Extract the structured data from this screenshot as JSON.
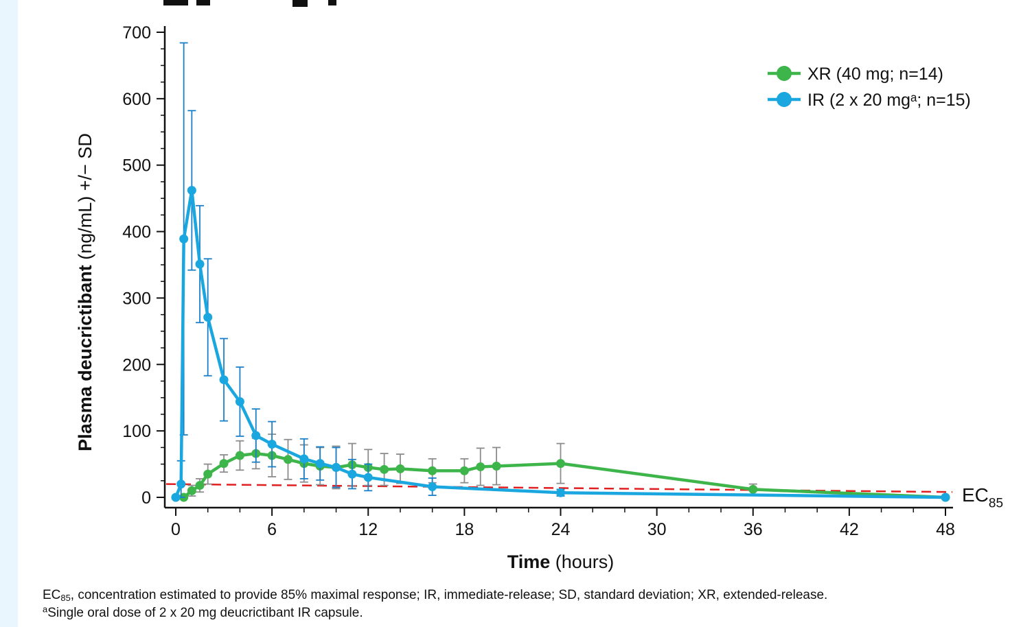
{
  "chart_data": {
    "type": "line",
    "xlabel_bold": "Time",
    "xlabel_rest": "(hours)",
    "ylabel_bold": "Plasma deucrictibant",
    "ylabel_rest": "(ng/mL) +/− SD",
    "xlim": [
      0,
      48
    ],
    "ylim": [
      0,
      700
    ],
    "x_ticks": [
      0,
      6,
      12,
      18,
      24,
      30,
      36,
      42,
      48
    ],
    "x_tick_labels": [
      "0",
      "6",
      "12",
      "18",
      "24",
      "30",
      "36",
      "42",
      "48"
    ],
    "y_ticks": [
      0,
      100,
      200,
      300,
      400,
      500,
      600,
      700
    ],
    "y_tick_labels": [
      "0",
      "100",
      "200",
      "300",
      "400",
      "500",
      "600",
      "700"
    ],
    "legend_position": "top-right",
    "series": [
      {
        "name": "XR (40 mg; n=14)",
        "color": "#3db54a",
        "error_color": "#8c8c8c",
        "points": [
          {
            "x": 0,
            "y": 0,
            "sd": 0
          },
          {
            "x": 0.5,
            "y": 0,
            "sd": 0
          },
          {
            "x": 1,
            "y": 10,
            "sd": 8
          },
          {
            "x": 1.5,
            "y": 18,
            "sd": 10
          },
          {
            "x": 2,
            "y": 35,
            "sd": 15
          },
          {
            "x": 3,
            "y": 51,
            "sd": 13
          },
          {
            "x": 4,
            "y": 63,
            "sd": 22
          },
          {
            "x": 5,
            "y": 66,
            "sd": 23
          },
          {
            "x": 6,
            "y": 63,
            "sd": 32
          },
          {
            "x": 7,
            "y": 57,
            "sd": 30
          },
          {
            "x": 8,
            "y": 51,
            "sd": 28
          },
          {
            "x": 9,
            "y": 47,
            "sd": 28
          },
          {
            "x": 10,
            "y": 45,
            "sd": 32
          },
          {
            "x": 11,
            "y": 49,
            "sd": 32
          },
          {
            "x": 12,
            "y": 45,
            "sd": 27
          },
          {
            "x": 13,
            "y": 42,
            "sd": 24
          },
          {
            "x": 14,
            "y": 43,
            "sd": 22
          },
          {
            "x": 16,
            "y": 40,
            "sd": 18
          },
          {
            "x": 18,
            "y": 40,
            "sd": 18
          },
          {
            "x": 19,
            "y": 46,
            "sd": 28
          },
          {
            "x": 20,
            "y": 47,
            "sd": 28
          },
          {
            "x": 24,
            "y": 51,
            "sd": 30
          },
          {
            "x": 36,
            "y": 12,
            "sd": 8
          },
          {
            "x": 48,
            "y": 0,
            "sd": 0
          }
        ]
      },
      {
        "name": "IR (2 x 20 mgᵃ; n=15)",
        "color": "#1aa7e0",
        "error_color": "#1a7fc9",
        "points": [
          {
            "x": 0,
            "y": 0,
            "sd": 0
          },
          {
            "x": 0.33,
            "y": 20,
            "sd": 35
          },
          {
            "x": 0.5,
            "y": 389,
            "sd": 295
          },
          {
            "x": 1,
            "y": 462,
            "sd": 120
          },
          {
            "x": 1.5,
            "y": 351,
            "sd": 88
          },
          {
            "x": 2,
            "y": 271,
            "sd": 88
          },
          {
            "x": 3,
            "y": 177,
            "sd": 62
          },
          {
            "x": 4,
            "y": 144,
            "sd": 52
          },
          {
            "x": 5,
            "y": 93,
            "sd": 40
          },
          {
            "x": 6,
            "y": 80,
            "sd": 34
          },
          {
            "x": 8,
            "y": 58,
            "sd": 30
          },
          {
            "x": 9,
            "y": 51,
            "sd": 25
          },
          {
            "x": 10,
            "y": 45,
            "sd": 30
          },
          {
            "x": 11,
            "y": 35,
            "sd": 22
          },
          {
            "x": 12,
            "y": 30,
            "sd": 20
          },
          {
            "x": 16,
            "y": 16,
            "sd": 13
          },
          {
            "x": 24,
            "y": 7,
            "sd": 5
          },
          {
            "x": 48,
            "y": 0,
            "sd": 0
          }
        ]
      }
    ],
    "reference_line": {
      "label_base": "EC",
      "label_sub": "85",
      "color": "#e02020",
      "style": "dashed",
      "y_start": 20,
      "y_end": 8
    }
  },
  "footnotes": {
    "line1_prefix": "EC",
    "line1_sub": "85",
    "line1_rest": ", concentration estimated to provide 85% maximal response; IR, immediate-release; SD, standard deviation; XR, extended-release.",
    "line2_sup": "a",
    "line2_rest": "Single oral dose of 2 x 20 mg deucrictibant IR capsule."
  }
}
